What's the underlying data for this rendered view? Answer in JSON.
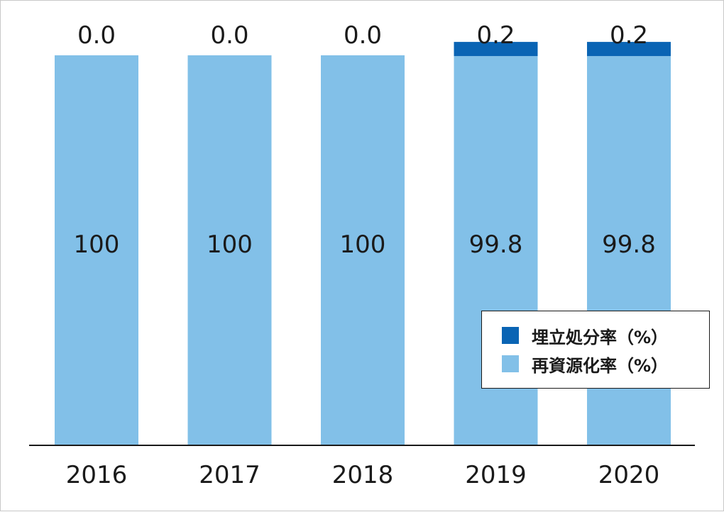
{
  "chart_data": {
    "type": "bar",
    "stacked": true,
    "categories": [
      "2016",
      "2017",
      "2018",
      "2019",
      "2020"
    ],
    "ylim": [
      0,
      100
    ],
    "series": [
      {
        "name": "再資源化率（%）",
        "color": "#82c0e8",
        "values": [
          100,
          100,
          100,
          99.8,
          99.8
        ],
        "labels": [
          "100",
          "100",
          "100",
          "99.8",
          "99.8"
        ]
      },
      {
        "name": "埋立処分率（%）",
        "color": "#0a64b4",
        "values": [
          0.0,
          0.0,
          0.0,
          0.2,
          0.2
        ],
        "labels": [
          "0.0",
          "0.0",
          "0.0",
          "0.2",
          "0.2"
        ]
      }
    ],
    "legend_position": "bottom-right",
    "grid": false
  }
}
